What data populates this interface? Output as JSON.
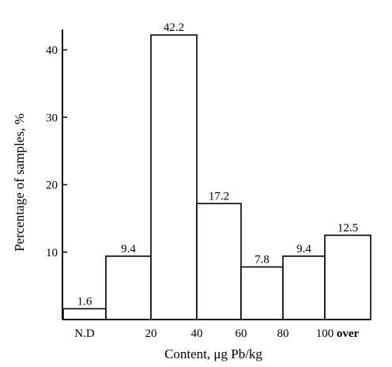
{
  "chart_data": {
    "type": "bar",
    "categories": [
      "N.D",
      "<20",
      "20-40",
      "40-60",
      "60-80",
      "80-100",
      "over"
    ],
    "values": [
      1.6,
      9.4,
      42.2,
      17.2,
      7.8,
      9.4,
      12.5
    ],
    "value_labels": [
      "1.6",
      "9.4",
      "42.2",
      "17.2",
      "7.8",
      "9.4",
      "12.5"
    ],
    "x_tick_labels": [
      "N.D",
      "20",
      "40",
      "60",
      "80",
      "100",
      "over"
    ],
    "y_ticks": [
      10,
      20,
      30,
      40
    ],
    "ylim": [
      0,
      43
    ],
    "xlabel": "Content, μg Pb/kg",
    "ylabel": "Percentage of samples, %",
    "grid": false
  }
}
